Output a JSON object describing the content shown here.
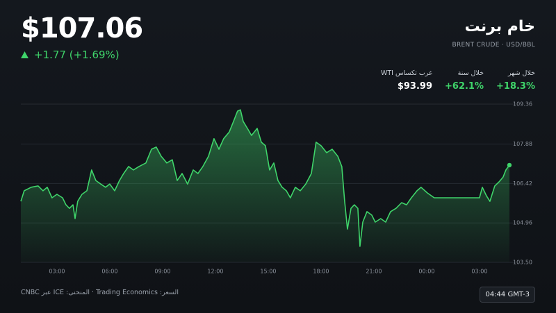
{
  "header": {
    "price": "$107.06",
    "change": "+1.77 (+1.69%)",
    "title": "خام برنت",
    "subtitle": "BRENT CRUDE · USD/BBL"
  },
  "stats": [
    {
      "label": "خلال شهر",
      "value": "+18.3%"
    },
    {
      "label": "خلال سنة",
      "value": "+62.1%"
    },
    {
      "label": "غرب تكساس WTI",
      "value": "$93.99"
    }
  ],
  "chart_data": {
    "type": "line",
    "color": "#3fd46a",
    "x": [
      0.95,
      1.14,
      1.54,
      1.93,
      2.21,
      2.45,
      2.72,
      3.0,
      3.32,
      3.51,
      3.71,
      3.91,
      4.03,
      4.18,
      4.42,
      4.7,
      4.97,
      5.21,
      5.49,
      5.76,
      6.0,
      6.28,
      6.55,
      6.79,
      7.07,
      7.34,
      7.66,
      8.05,
      8.37,
      8.64,
      8.92,
      9.24,
      9.55,
      9.83,
      10.11,
      10.42,
      10.74,
      11.01,
      11.29,
      11.61,
      11.92,
      12.2,
      12.47,
      12.79,
      13.03,
      13.26,
      13.42,
      13.58,
      13.82,
      14.05,
      14.37,
      14.61,
      14.84,
      15.08,
      15.32,
      15.55,
      15.79,
      16.03,
      16.26,
      16.54,
      16.82,
      17.13,
      17.45,
      17.72,
      18.0,
      18.32,
      18.63,
      18.95,
      19.18,
      19.34,
      19.5,
      19.7,
      19.89,
      20.09,
      20.21,
      20.37,
      20.61,
      20.88,
      21.08,
      21.39,
      21.67,
      21.95,
      22.26,
      22.58,
      22.86,
      23.13,
      23.45,
      23.68,
      24.04,
      24.43,
      27.0,
      27.16,
      27.39,
      27.59,
      27.87,
      28.11,
      28.34,
      28.5,
      28.7
    ],
    "values": [
      105.76,
      106.15,
      106.28,
      106.33,
      106.15,
      106.28,
      105.89,
      106.02,
      105.89,
      105.63,
      105.5,
      105.63,
      105.12,
      105.76,
      106.02,
      106.15,
      106.92,
      106.53,
      106.4,
      106.28,
      106.4,
      106.15,
      106.53,
      106.79,
      107.05,
      106.92,
      107.05,
      107.18,
      107.69,
      107.77,
      107.43,
      107.18,
      107.3,
      106.53,
      106.79,
      106.4,
      106.92,
      106.79,
      107.05,
      107.43,
      108.08,
      107.69,
      108.08,
      108.33,
      108.72,
      109.1,
      109.15,
      108.72,
      108.46,
      108.2,
      108.46,
      107.95,
      107.82,
      106.92,
      107.18,
      106.53,
      106.28,
      106.15,
      105.89,
      106.28,
      106.15,
      106.4,
      106.79,
      107.95,
      107.82,
      107.56,
      107.69,
      107.43,
      107.05,
      105.76,
      104.73,
      105.5,
      105.63,
      105.5,
      104.09,
      104.99,
      105.38,
      105.25,
      104.99,
      105.12,
      104.99,
      105.38,
      105.5,
      105.71,
      105.63,
      105.89,
      106.15,
      106.28,
      106.07,
      105.89,
      105.89,
      106.28,
      105.97,
      105.76,
      106.33,
      106.48,
      106.66,
      106.92,
      107.1
    ],
    "xlim": [
      0.95,
      28.78
    ],
    "xticks": [
      {
        "value": 3,
        "label": "03:00"
      },
      {
        "value": 6,
        "label": "06:00"
      },
      {
        "value": 9,
        "label": "09:00"
      },
      {
        "value": 12,
        "label": "12:00"
      },
      {
        "value": 15,
        "label": "15:00"
      },
      {
        "value": 18,
        "label": "18:00"
      },
      {
        "value": 21,
        "label": "21:00"
      },
      {
        "value": 24,
        "label": "00:00"
      },
      {
        "value": 27,
        "label": "03:00"
      }
    ],
    "ylim": [
      103.5,
      109.36
    ],
    "yticks": [
      {
        "value": 103.5,
        "label": "103.50"
      },
      104.96,
      106.42,
      107.88,
      109.36
    ],
    "grid": true
  },
  "footer": {
    "source": "السعر: Trading Economics · المنحنى: ICE عبر CNBC",
    "time": "04:44 GMT-3"
  }
}
